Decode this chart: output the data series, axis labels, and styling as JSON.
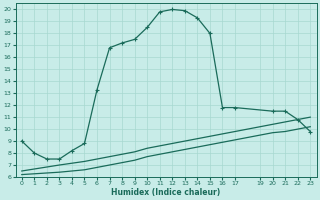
{
  "bg_color": "#c8ece8",
  "grid_color": "#a8d8d0",
  "line_color": "#1a6b5a",
  "xlabel": "Humidex (Indice chaleur)",
  "xlim": [
    -0.5,
    23.5
  ],
  "ylim": [
    6,
    20.5
  ],
  "xtick_positions": [
    0,
    1,
    2,
    3,
    4,
    5,
    6,
    7,
    8,
    9,
    10,
    11,
    12,
    13,
    14,
    15,
    16,
    17,
    19,
    20,
    21,
    22,
    23
  ],
  "xtick_labels": [
    "0",
    "1",
    "2",
    "3",
    "4",
    "5",
    "6",
    "7",
    "8",
    "9",
    "10",
    "11",
    "12",
    "13",
    "14",
    "15",
    "16",
    "17",
    "19",
    "20",
    "21",
    "22",
    "23"
  ],
  "ytick_positions": [
    6,
    7,
    8,
    9,
    10,
    11,
    12,
    13,
    14,
    15,
    16,
    17,
    18,
    19,
    20
  ],
  "ytick_labels": [
    "6",
    "7",
    "8",
    "9",
    "10",
    "11",
    "12",
    "13",
    "14",
    "15",
    "16",
    "17",
    "18",
    "19",
    "20"
  ],
  "main_x": [
    0,
    1,
    2,
    3,
    4,
    5,
    6,
    7,
    8,
    9,
    10,
    11,
    12,
    13,
    14,
    15,
    16,
    17,
    20,
    21,
    22,
    23
  ],
  "main_y": [
    9.0,
    8.0,
    7.5,
    7.5,
    8.2,
    8.8,
    13.3,
    16.8,
    17.2,
    17.5,
    18.5,
    19.8,
    20.0,
    19.9,
    19.3,
    18.0,
    11.8,
    11.8,
    11.5,
    11.5,
    10.8,
    9.8
  ],
  "line2_x": [
    0,
    3,
    5,
    6,
    7,
    8,
    9,
    10,
    11,
    12,
    13,
    14,
    15,
    16,
    17,
    19,
    20,
    21,
    22,
    23
  ],
  "line2_y": [
    6.5,
    7.0,
    7.3,
    7.5,
    7.7,
    7.9,
    8.1,
    8.4,
    8.6,
    8.8,
    9.0,
    9.2,
    9.4,
    9.6,
    9.8,
    10.2,
    10.4,
    10.6,
    10.8,
    11.0
  ],
  "line3_x": [
    0,
    3,
    5,
    6,
    7,
    8,
    9,
    10,
    11,
    12,
    13,
    14,
    15,
    16,
    17,
    19,
    20,
    21,
    22,
    23
  ],
  "line3_y": [
    6.2,
    6.4,
    6.6,
    6.8,
    7.0,
    7.2,
    7.4,
    7.7,
    7.9,
    8.1,
    8.3,
    8.5,
    8.7,
    8.9,
    9.1,
    9.5,
    9.7,
    9.8,
    10.0,
    10.2
  ]
}
